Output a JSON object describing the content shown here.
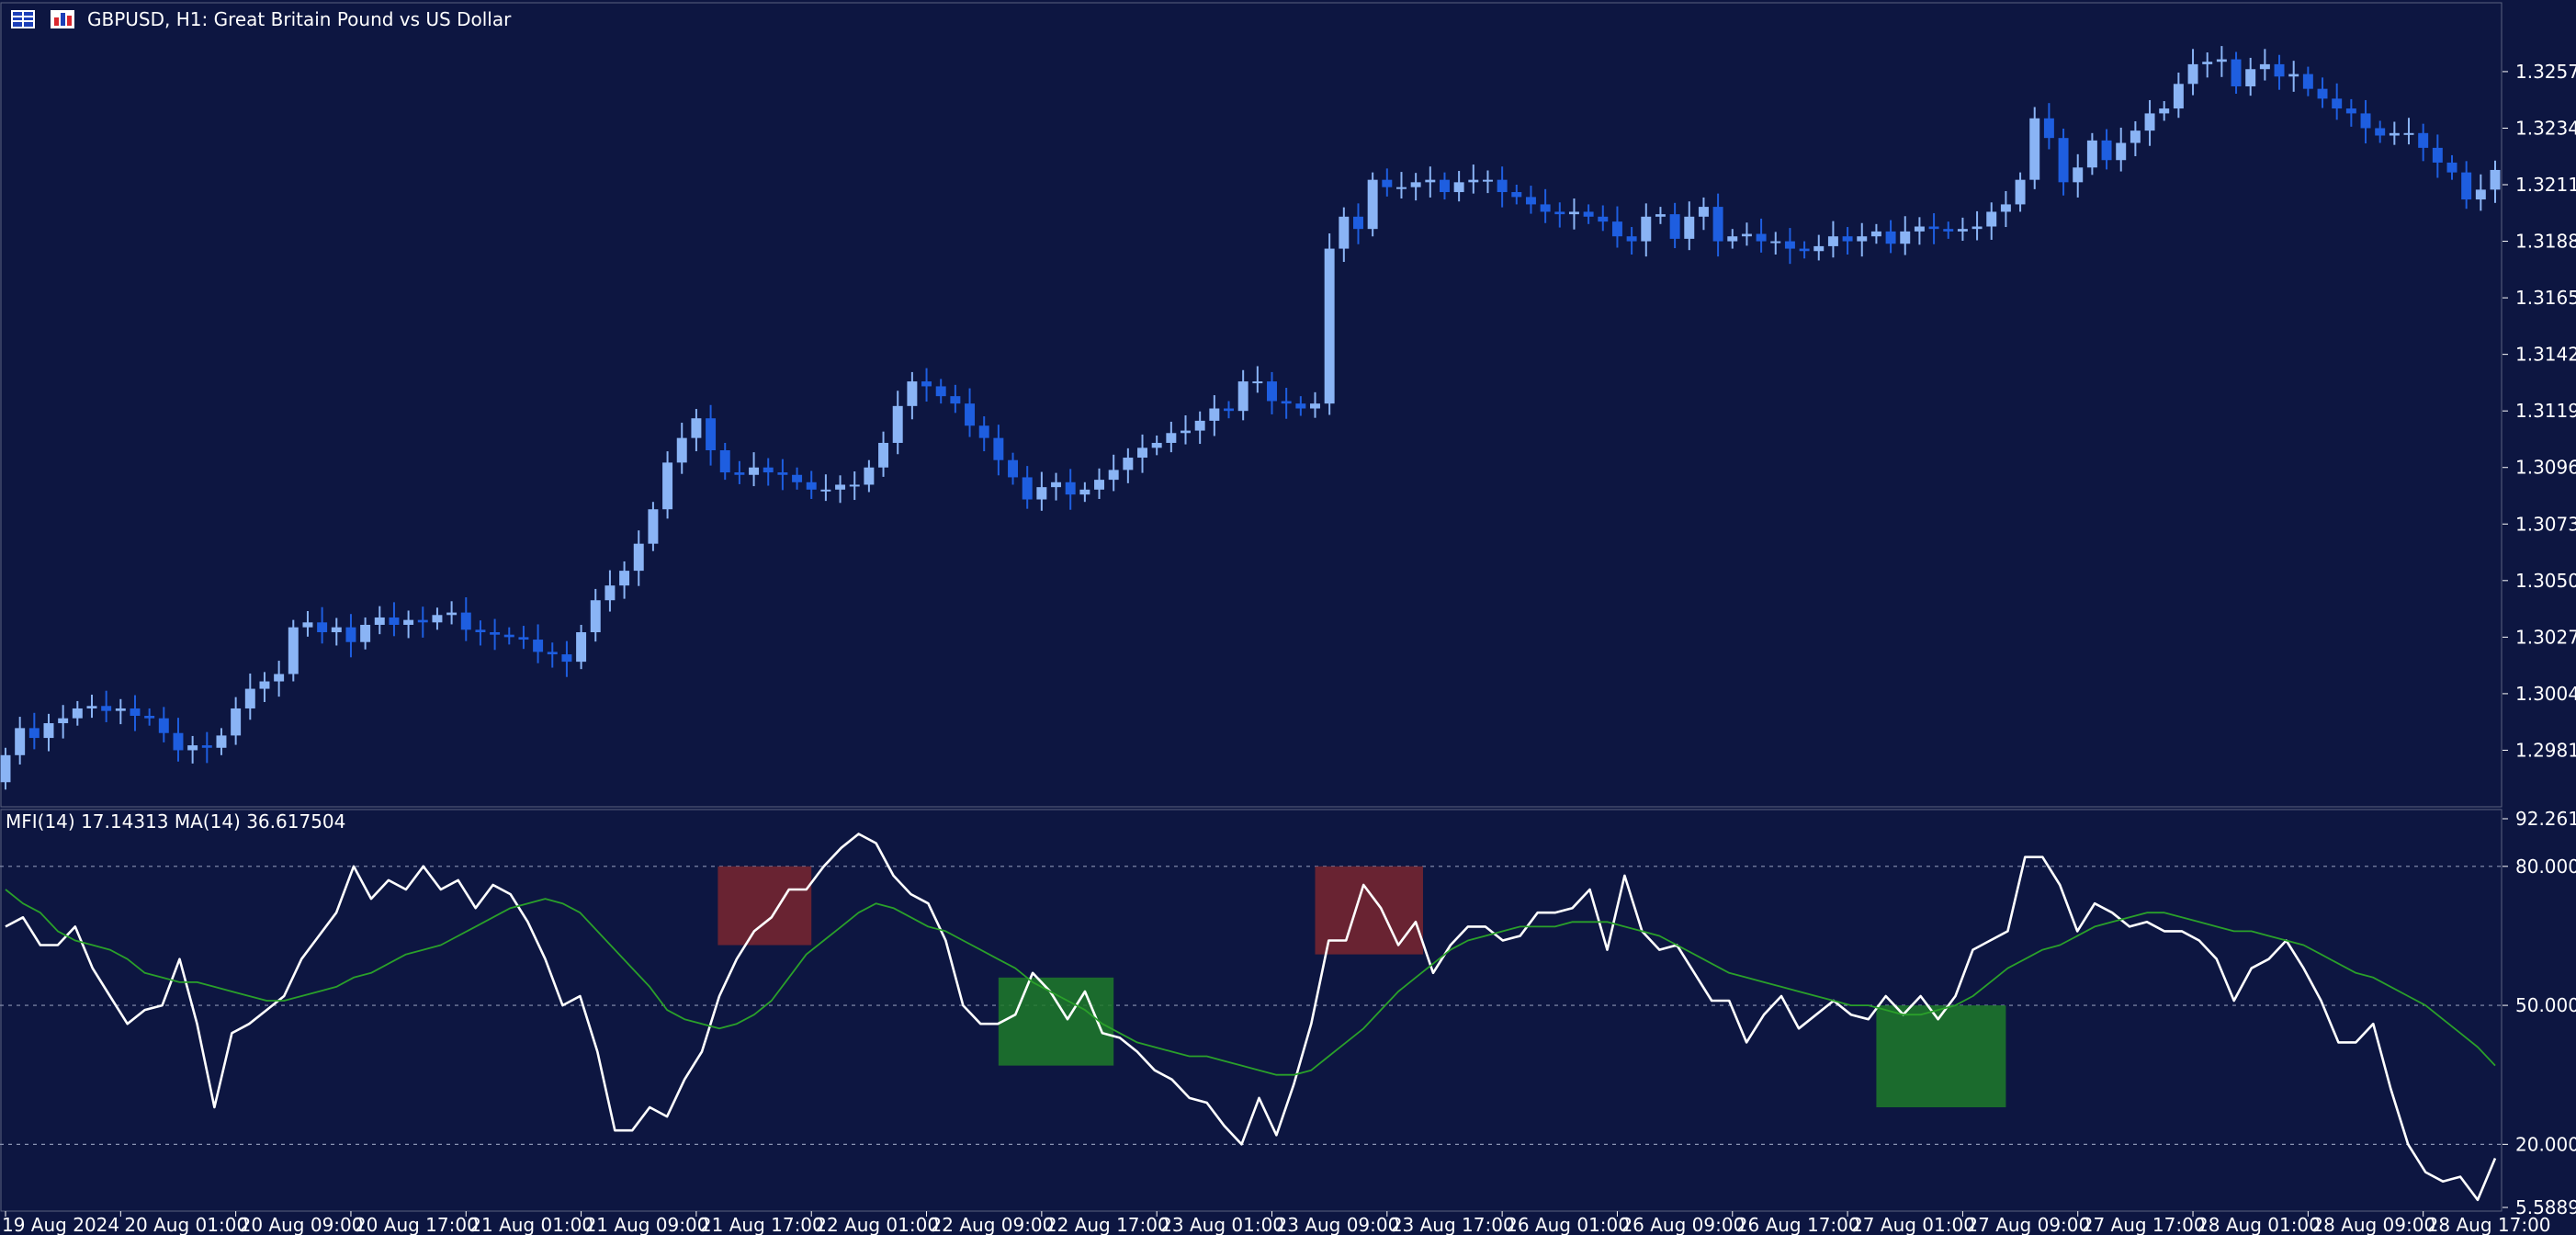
{
  "header": {
    "symbol_text": "GBPUSD, H1:  Great Britain Pound vs US Dollar",
    "indicator_text": "MFI(14) 17.14313 MA(14) 36.617504",
    "icons": [
      "table-icon",
      "chart-type-icon"
    ]
  },
  "colors": {
    "background": "#0d1641",
    "bull_candle": "#8ab4f5",
    "bear_candle": "#1e5ee0",
    "mfi_line": "#ffffff",
    "ma_line": "#2aa02a",
    "overbought_box": "#7a2630",
    "oversold_box": "#1f7a2a",
    "grid_dash": "#8a93b3"
  },
  "chart_data": [
    {
      "type": "candlestick",
      "title": "GBPUSD, H1:  Great Britain Pound vs US Dollar",
      "ylim": [
        1.2958,
        1.3285
      ],
      "y_ticks": [
        "1.32570",
        "1.32340",
        "1.32110",
        "1.31880",
        "1.31650",
        "1.31420",
        "1.31190",
        "1.30960",
        "1.30730",
        "1.30500",
        "1.30270",
        "1.30040",
        "1.29810"
      ],
      "x_ticks": [
        "19 Aug 2024",
        "20 Aug 01:00",
        "20 Aug 09:00",
        "20 Aug 17:00",
        "21 Aug 01:00",
        "21 Aug 09:00",
        "21 Aug 17:00",
        "22 Aug 01:00",
        "22 Aug 09:00",
        "22 Aug 17:00",
        "23 Aug 01:00",
        "23 Aug 09:00",
        "23 Aug 17:00",
        "26 Aug 01:00",
        "26 Aug 09:00",
        "26 Aug 17:00",
        "27 Aug 01:00",
        "27 Aug 09:00",
        "27 Aug 17:00",
        "28 Aug 01:00",
        "28 Aug 09:00",
        "28 Aug 17:00"
      ],
      "x_tick_index": [
        0,
        8,
        16,
        24,
        32,
        40,
        48,
        56,
        64,
        72,
        80,
        88,
        96,
        104,
        112,
        120,
        128,
        136,
        144,
        152,
        160,
        168
      ],
      "close": [
        1.2979,
        1.299,
        1.2986,
        1.2992,
        1.2994,
        1.2998,
        1.2999,
        1.2997,
        1.2998,
        1.2995,
        1.2994,
        1.2988,
        1.2981,
        1.2983,
        1.2982,
        1.2987,
        1.2998,
        1.3006,
        1.3009,
        1.3012,
        1.3031,
        1.3033,
        1.3029,
        1.3031,
        1.3025,
        1.3032,
        1.3035,
        1.3032,
        1.3034,
        1.3033,
        1.3036,
        1.3037,
        1.303,
        1.3029,
        1.3028,
        1.3027,
        1.3026,
        1.3021,
        1.302,
        1.3017,
        1.3029,
        1.3042,
        1.3048,
        1.3054,
        1.3065,
        1.3079,
        1.3098,
        1.3108,
        1.3116,
        1.3103,
        1.3094,
        1.3093,
        1.3096,
        1.3094,
        1.3093,
        1.309,
        1.3087,
        1.3087,
        1.3089,
        1.3089,
        1.3096,
        1.3106,
        1.3121,
        1.3131,
        1.3129,
        1.3125,
        1.3122,
        1.3113,
        1.3108,
        1.3099,
        1.3092,
        1.3083,
        1.3088,
        1.309,
        1.3085,
        1.3087,
        1.3091,
        1.3095,
        1.31,
        1.3104,
        1.3106,
        1.311,
        1.3111,
        1.3115,
        1.312,
        1.3119,
        1.3131,
        1.3131,
        1.3123,
        1.3122,
        1.312,
        1.3122,
        1.3185,
        1.3198,
        1.3193,
        1.3213,
        1.321,
        1.321,
        1.3212,
        1.3213,
        1.3208,
        1.3212,
        1.3213,
        1.3213,
        1.3208,
        1.3206,
        1.3203,
        1.32,
        1.3199,
        1.32,
        1.3198,
        1.3196,
        1.319,
        1.3188,
        1.3198,
        1.3199,
        1.3189,
        1.3198,
        1.3202,
        1.3188,
        1.319,
        1.3191,
        1.3188,
        1.3188,
        1.3185,
        1.3184,
        1.3186,
        1.319,
        1.3188,
        1.319,
        1.3192,
        1.3187,
        1.3192,
        1.3194,
        1.3193,
        1.3192,
        1.3193,
        1.3194,
        1.32,
        1.3203,
        1.3213,
        1.3238,
        1.323,
        1.3212,
        1.3218,
        1.3229,
        1.3221,
        1.3228,
        1.3233,
        1.324,
        1.3242,
        1.3252,
        1.326,
        1.3261,
        1.3262,
        1.3251,
        1.3258,
        1.326,
        1.3255,
        1.3256,
        1.325,
        1.3246,
        1.3242,
        1.324,
        1.3234,
        1.3231,
        1.3232,
        1.3232,
        1.3226,
        1.322,
        1.3216,
        1.3205,
        1.3209,
        1.3217
      ],
      "open": [
        1.2968,
        1.2979,
        1.299,
        1.2986,
        1.2992,
        1.2994,
        1.2998,
        1.2999,
        1.2997,
        1.2998,
        1.2995,
        1.2994,
        1.2988,
        1.2981,
        1.2983,
        1.2982,
        1.2987,
        1.2998,
        1.3006,
        1.3009,
        1.3012,
        1.3031,
        1.3033,
        1.3029,
        1.3031,
        1.3025,
        1.3032,
        1.3035,
        1.3032,
        1.3034,
        1.3033,
        1.3036,
        1.3037,
        1.303,
        1.3029,
        1.3028,
        1.3027,
        1.3026,
        1.3021,
        1.302,
        1.3017,
        1.3029,
        1.3042,
        1.3048,
        1.3054,
        1.3065,
        1.3079,
        1.3098,
        1.3108,
        1.3116,
        1.3103,
        1.3094,
        1.3093,
        1.3096,
        1.3094,
        1.3093,
        1.309,
        1.3087,
        1.3087,
        1.3089,
        1.3089,
        1.3096,
        1.3106,
        1.3121,
        1.3131,
        1.3129,
        1.3125,
        1.3122,
        1.3113,
        1.3108,
        1.3099,
        1.3092,
        1.3083,
        1.3088,
        1.309,
        1.3085,
        1.3087,
        1.3091,
        1.3095,
        1.31,
        1.3104,
        1.3106,
        1.311,
        1.3111,
        1.3115,
        1.312,
        1.3119,
        1.3131,
        1.3131,
        1.3123,
        1.3122,
        1.312,
        1.3122,
        1.3185,
        1.3198,
        1.3193,
        1.3213,
        1.321,
        1.321,
        1.3212,
        1.3213,
        1.3208,
        1.3212,
        1.3213,
        1.3213,
        1.3208,
        1.3206,
        1.3203,
        1.32,
        1.3199,
        1.32,
        1.3198,
        1.3196,
        1.319,
        1.3188,
        1.3198,
        1.3199,
        1.3189,
        1.3198,
        1.3202,
        1.3188,
        1.319,
        1.3191,
        1.3188,
        1.3188,
        1.3185,
        1.3184,
        1.3186,
        1.319,
        1.3188,
        1.319,
        1.3192,
        1.3187,
        1.3192,
        1.3194,
        1.3193,
        1.3192,
        1.3193,
        1.3194,
        1.32,
        1.3203,
        1.3213,
        1.3238,
        1.323,
        1.3212,
        1.3218,
        1.3229,
        1.3221,
        1.3228,
        1.3233,
        1.324,
        1.3242,
        1.3252,
        1.326,
        1.3261,
        1.3262,
        1.3251,
        1.3258,
        1.326,
        1.3255,
        1.3256,
        1.325,
        1.3246,
        1.3242,
        1.324,
        1.3234,
        1.3231,
        1.3232,
        1.3232,
        1.3226,
        1.322,
        1.3216,
        1.3205,
        1.3209
      ]
    },
    {
      "type": "line",
      "title": "MFI(14) 17.14313 MA(14) 36.617504",
      "ylim": [
        5.58892,
        92.26145
      ],
      "y_ticks": [
        "92.26145",
        "80.000000",
        "50.000000",
        "20.000000",
        "5.58892"
      ],
      "reference_levels": [
        80,
        50,
        20
      ],
      "series": [
        {
          "name": "MFI(14)",
          "values": [
            67,
            69,
            63,
            63,
            67,
            58,
            52,
            46,
            49,
            50,
            60,
            46,
            28,
            44,
            46,
            49,
            52,
            60,
            65,
            70,
            80,
            73,
            77,
            75,
            80,
            75,
            77,
            71,
            76,
            74,
            68,
            60,
            50,
            52,
            40,
            23,
            23,
            28,
            26,
            34,
            40,
            52,
            60,
            66,
            69,
            75,
            75,
            80,
            84,
            87,
            85,
            78,
            74,
            72,
            64,
            50,
            46,
            46,
            48,
            57,
            53,
            47,
            53,
            44,
            43,
            40,
            36,
            34,
            30,
            29,
            24,
            20,
            30,
            22,
            33,
            46,
            64,
            64,
            76,
            71,
            63,
            68,
            57,
            63,
            67,
            67,
            64,
            65,
            70,
            70,
            71,
            75,
            62,
            78,
            66,
            62,
            63,
            57,
            51,
            51,
            42,
            48,
            52,
            45,
            48,
            51,
            48,
            47,
            52,
            48,
            52,
            47,
            52,
            62,
            64,
            66,
            82,
            82,
            76,
            66,
            72,
            70,
            67,
            68,
            66,
            66,
            64,
            60,
            51,
            58,
            60,
            64,
            58,
            51,
            42,
            42,
            46,
            32,
            20,
            14,
            12,
            13,
            8,
            17
          ]
        },
        {
          "name": "MA(14)",
          "values": [
            75,
            72,
            70,
            66,
            64,
            63,
            62,
            60,
            57,
            56,
            55,
            55,
            54,
            53,
            52,
            51,
            51,
            52,
            53,
            54,
            56,
            57,
            59,
            61,
            62,
            63,
            65,
            67,
            69,
            71,
            72,
            73,
            72,
            70,
            66,
            62,
            58,
            54,
            49,
            47,
            46,
            45,
            46,
            48,
            51,
            56,
            61,
            64,
            67,
            70,
            72,
            71,
            69,
            67,
            66,
            64,
            62,
            60,
            58,
            55,
            53,
            51,
            49,
            46,
            44,
            42,
            41,
            40,
            39,
            39,
            38,
            37,
            36,
            35,
            35,
            36,
            39,
            42,
            45,
            49,
            53,
            56,
            59,
            62,
            64,
            65,
            66,
            67,
            67,
            67,
            68,
            68,
            68,
            67,
            66,
            65,
            63,
            61,
            59,
            57,
            56,
            55,
            54,
            53,
            52,
            51,
            50,
            50,
            49,
            48,
            48,
            49,
            50,
            52,
            55,
            58,
            60,
            62,
            63,
            65,
            67,
            68,
            69,
            70,
            70,
            69,
            68,
            67,
            66,
            66,
            65,
            64,
            63,
            61,
            59,
            57,
            56,
            54,
            52,
            50,
            47,
            44,
            41,
            37
          ]
        }
      ]
    }
  ]
}
